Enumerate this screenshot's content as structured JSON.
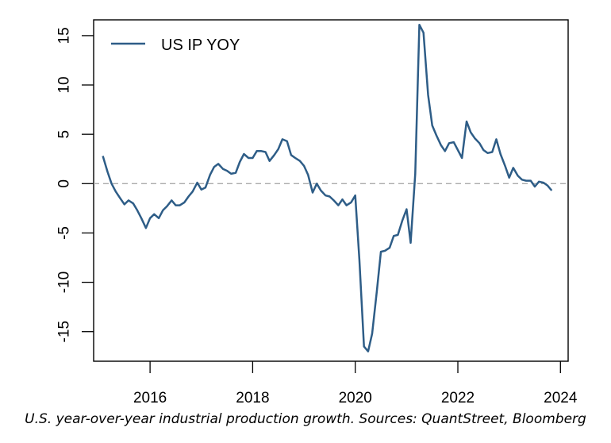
{
  "chart_data": {
    "type": "line",
    "title": "",
    "xlabel": "",
    "ylabel": "",
    "xlim": [
      2014.9,
      2024.15
    ],
    "ylim": [
      -18,
      16.6
    ],
    "xticks": [
      2016,
      2018,
      2020,
      2022,
      2024
    ],
    "xtick_labels": [
      "2016",
      "2018",
      "2020",
      "2022",
      "2024"
    ],
    "yticks": [
      -15,
      -10,
      -5,
      0,
      5,
      10,
      15
    ],
    "ytick_labels": [
      "-15",
      "-10",
      "-5",
      "0",
      "5",
      "10",
      "15"
    ],
    "reference_line": {
      "y": 0,
      "style": "dashed",
      "color": "#aaaaaa"
    },
    "grid": false,
    "legend": {
      "position": "top-left",
      "entries": [
        "US IP YOY"
      ]
    },
    "series": [
      {
        "name": "US IP YOY",
        "color": "#2E5D87",
        "x": [
          2015.08,
          2015.17,
          2015.25,
          2015.33,
          2015.42,
          2015.5,
          2015.58,
          2015.67,
          2015.75,
          2015.83,
          2015.92,
          2016.0,
          2016.08,
          2016.17,
          2016.25,
          2016.33,
          2016.42,
          2016.5,
          2016.58,
          2016.67,
          2016.75,
          2016.83,
          2016.92,
          2017.0,
          2017.08,
          2017.17,
          2017.25,
          2017.33,
          2017.42,
          2017.5,
          2017.58,
          2017.67,
          2017.75,
          2017.83,
          2017.92,
          2018.0,
          2018.08,
          2018.17,
          2018.25,
          2018.33,
          2018.42,
          2018.5,
          2018.58,
          2018.67,
          2018.75,
          2018.83,
          2018.92,
          2019.0,
          2019.08,
          2019.17,
          2019.25,
          2019.33,
          2019.42,
          2019.5,
          2019.58,
          2019.67,
          2019.75,
          2019.83,
          2019.92,
          2020.0,
          2020.08,
          2020.17,
          2020.25,
          2020.33,
          2020.42,
          2020.5,
          2020.58,
          2020.67,
          2020.75,
          2020.83,
          2020.92,
          2021.0,
          2021.08,
          2021.17,
          2021.25,
          2021.33,
          2021.42,
          2021.5,
          2021.58,
          2021.67,
          2021.75,
          2021.83,
          2021.92,
          2022.0,
          2022.08,
          2022.17,
          2022.25,
          2022.33,
          2022.42,
          2022.5,
          2022.58,
          2022.67,
          2022.75,
          2022.83,
          2022.92,
          2023.0,
          2023.08,
          2023.17,
          2023.25,
          2023.33,
          2023.42,
          2023.5,
          2023.58,
          2023.67,
          2023.75,
          2023.83
        ],
        "y": [
          2.8,
          1.2,
          0.0,
          -0.8,
          -1.5,
          -2.1,
          -1.7,
          -2.0,
          -2.7,
          -3.5,
          -4.5,
          -3.5,
          -3.1,
          -3.5,
          -2.7,
          -2.3,
          -1.7,
          -2.2,
          -2.2,
          -1.9,
          -1.3,
          -0.8,
          0.1,
          -0.6,
          -0.4,
          0.9,
          1.7,
          2.0,
          1.5,
          1.3,
          1.0,
          1.1,
          2.2,
          3.0,
          2.6,
          2.6,
          3.3,
          3.3,
          3.2,
          2.3,
          2.9,
          3.5,
          4.5,
          4.3,
          2.9,
          2.6,
          2.3,
          1.8,
          0.9,
          -0.9,
          0.0,
          -0.7,
          -1.2,
          -1.3,
          -1.7,
          -2.2,
          -1.6,
          -2.2,
          -1.9,
          -1.2,
          -7.7,
          -16.5,
          -17.0,
          -15.2,
          -10.9,
          -6.9,
          -6.8,
          -6.5,
          -5.3,
          -5.2,
          -3.7,
          -2.6,
          -6.0,
          1.0,
          16.1,
          15.3,
          9.0,
          5.9,
          4.9,
          3.9,
          3.3,
          4.1,
          4.2,
          3.4,
          2.6,
          6.3,
          5.2,
          4.6,
          4.1,
          3.4,
          3.1,
          3.2,
          4.5,
          3.0,
          1.8,
          0.6,
          1.6,
          0.8,
          0.4,
          0.3,
          0.3,
          -0.3,
          0.2,
          0.1,
          -0.2,
          -0.7
        ]
      }
    ]
  },
  "caption": "U.S. year-over-year industrial production growth. Sources: QuantStreet, Bloomberg"
}
